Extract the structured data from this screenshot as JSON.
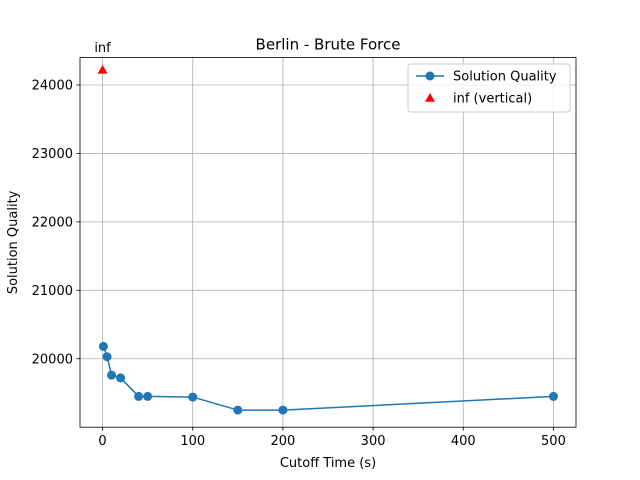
{
  "chart_data": {
    "type": "line",
    "title": "Berlin - Brute Force",
    "xlabel": "Cutoff Time (s)",
    "ylabel": "Solution Quality",
    "xlim": [
      -25,
      525
    ],
    "ylim": [
      19000,
      24400
    ],
    "x_ticks": [
      0,
      100,
      200,
      300,
      400,
      500
    ],
    "y_ticks": [
      20000,
      21000,
      22000,
      23000,
      24000
    ],
    "x_tick_labels": [
      "0",
      "100",
      "200",
      "300",
      "400",
      "500"
    ],
    "y_tick_labels": [
      "20000",
      "21000",
      "22000",
      "23000",
      "24000"
    ],
    "grid": true,
    "legend_position": "top-right",
    "series": [
      {
        "name": "Solution Quality",
        "kind": "line-marker",
        "color": "#1f77b4",
        "x": [
          1,
          5,
          10,
          20,
          40,
          50,
          100,
          150,
          200,
          500
        ],
        "y": [
          20180,
          20030,
          19760,
          19720,
          19450,
          19450,
          19440,
          19250,
          19250,
          19450
        ]
      },
      {
        "name": "inf (vertical)",
        "kind": "triangle-marker",
        "color": "#ff0000",
        "x": [
          0
        ],
        "y": [
          24220
        ]
      }
    ],
    "annotations": [
      {
        "text": "inf",
        "x": 0,
        "y": 24480
      }
    ]
  }
}
